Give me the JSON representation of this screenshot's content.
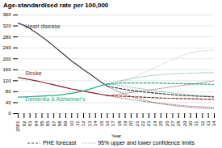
{
  "chart_data": {
    "type": "line",
    "title": "Age-standardised rate per 100,000",
    "xlabel": "Year",
    "x": [
      2001,
      2002,
      2003,
      2004,
      2005,
      2006,
      2007,
      2008,
      2009,
      2010,
      2011,
      2012,
      2013,
      2014,
      2015,
      2016,
      2017,
      2018,
      2019,
      2020,
      2021,
      2022,
      2023,
      2024,
      2025,
      2026,
      2027,
      2028,
      2029,
      2030,
      2031,
      2032,
      2033,
      2034
    ],
    "xlim": [
      2001,
      2034
    ],
    "xticks": [
      2001,
      {
        "value": 2002,
        "label": "02"
      },
      {
        "value": 2003,
        "label": "03"
      },
      {
        "value": 2004,
        "label": "04"
      },
      {
        "value": 2005,
        "label": "05"
      },
      {
        "value": 2006,
        "label": "06"
      },
      {
        "value": 2007,
        "label": "07"
      },
      {
        "value": 2008,
        "label": "08"
      },
      {
        "value": 2009,
        "label": "09"
      },
      {
        "value": 2010,
        "label": "10"
      },
      {
        "value": 2011,
        "label": "11"
      },
      {
        "value": 2012,
        "label": "12"
      },
      {
        "value": 2013,
        "label": "13"
      },
      {
        "value": 2014,
        "label": "14"
      },
      {
        "value": 2015,
        "label": "15"
      },
      {
        "value": 2016,
        "label": "16"
      },
      {
        "value": 2017,
        "label": "17"
      },
      {
        "value": 2018,
        "label": "18"
      },
      {
        "value": 2019,
        "label": "19"
      },
      {
        "value": 2020,
        "label": "20"
      },
      {
        "value": 2021,
        "label": "21"
      },
      {
        "value": 2022,
        "label": "22"
      },
      {
        "value": 2023,
        "label": "23"
      },
      {
        "value": 2024,
        "label": "24"
      },
      {
        "value": 2025,
        "label": "25"
      },
      {
        "value": 2026,
        "label": "26"
      },
      {
        "value": 2027,
        "label": "27"
      },
      {
        "value": 2028,
        "label": "28"
      },
      {
        "value": 2029,
        "label": "29"
      },
      {
        "value": 2030,
        "label": "30"
      },
      {
        "value": 2031,
        "label": "31"
      },
      {
        "value": 2032,
        "label": "32"
      },
      {
        "value": 2033,
        "label": "33"
      },
      {
        "value": 2034,
        "label": "34"
      }
    ],
    "ylim": [
      0,
      360
    ],
    "yticks": [
      0,
      40,
      80,
      120,
      160,
      200,
      240,
      280,
      320,
      360
    ],
    "grid": true,
    "legend": "bottom",
    "series": [
      {
        "color": "#3a3a3a",
        "line_style": "solid",
        "values": [
          330,
          322,
          310,
          296,
          280,
          264,
          246,
          228,
          210,
          192,
          176,
          160,
          146,
          130,
          114,
          100,
          null,
          null,
          null,
          null,
          null,
          null,
          null,
          null,
          null,
          null,
          null,
          null,
          null,
          null,
          null,
          null,
          null,
          null
        ]
      },
      {
        "color": "#8b2020",
        "line_style": "solid",
        "values": [
          132,
          128,
          124,
          120,
          115,
          110,
          105,
          100,
          95,
          90,
          86,
          82,
          78,
          74,
          70,
          66,
          null,
          null,
          null,
          null,
          null,
          null,
          null,
          null,
          null,
          null,
          null,
          null,
          null,
          null,
          null,
          null,
          null,
          null
        ]
      },
      {
        "color": "#20a882",
        "line_style": "solid",
        "values": [
          60,
          61,
          62,
          63,
          64,
          65,
          66,
          68,
          71,
          74,
          78,
          83,
          89,
          96,
          103,
          108,
          null,
          null,
          null,
          null,
          null,
          null,
          null,
          null,
          null,
          null,
          null,
          null,
          null,
          null,
          null,
          null,
          null,
          null
        ]
      },
      {
        "name": "PHE forecast",
        "color": "#3a3a3a",
        "line_style": "dashed",
        "values": [
          null,
          null,
          null,
          null,
          null,
          null,
          null,
          null,
          null,
          null,
          null,
          null,
          null,
          null,
          null,
          100,
          96,
          92,
          88,
          85,
          82,
          79,
          77,
          75,
          73,
          71,
          69,
          67,
          66,
          65,
          64,
          63,
          62,
          61
        ]
      },
      {
        "name": "PHE forecast",
        "color": "#8b2020",
        "line_style": "dashed",
        "values": [
          null,
          null,
          null,
          null,
          null,
          null,
          null,
          null,
          null,
          null,
          null,
          null,
          null,
          null,
          null,
          66,
          65,
          64,
          63,
          62,
          61,
          60,
          59,
          58,
          57,
          56,
          56,
          55,
          55,
          54,
          54,
          53,
          53,
          52
        ]
      },
      {
        "name": "PHE forecast",
        "color": "#20a882",
        "line_style": "dashed",
        "values": [
          null,
          null,
          null,
          null,
          null,
          null,
          null,
          null,
          null,
          null,
          null,
          null,
          null,
          null,
          null,
          108,
          110,
          111,
          112,
          112,
          112,
          112,
          112,
          112,
          111,
          111,
          110,
          110,
          109,
          109,
          108,
          108,
          107,
          107
        ]
      },
      {
        "name": "95% upper and lower confidence limits",
        "color": "#a0b8c0",
        "line_style": "dotted",
        "values": [
          null,
          null,
          null,
          null,
          null,
          null,
          null,
          null,
          null,
          null,
          null,
          null,
          null,
          null,
          null,
          100,
          105,
          112,
          120,
          128,
          138,
          148,
          158,
          168,
          178,
          188,
          198,
          207,
          215,
          222,
          226,
          229,
          231,
          232
        ]
      },
      {
        "name": "95% upper and lower confidence limits",
        "color": "#3a3a3a",
        "line_style": "dotted",
        "values": [
          null,
          null,
          null,
          null,
          null,
          null,
          null,
          null,
          null,
          null,
          null,
          null,
          null,
          null,
          null,
          100,
          89,
          79,
          70,
          63,
          56,
          50,
          45,
          40,
          36,
          33,
          30,
          27,
          25,
          23,
          21,
          20,
          19,
          18
        ]
      },
      {
        "name": "95% upper and lower confidence limits",
        "color": "#8b2020",
        "line_style": "dotted",
        "values": [
          null,
          null,
          null,
          null,
          null,
          null,
          null,
          null,
          null,
          null,
          null,
          null,
          null,
          null,
          null,
          66,
          68,
          71,
          74,
          77,
          80,
          83,
          86,
          89,
          92,
          95,
          98,
          101,
          104,
          107,
          110,
          113,
          116,
          120
        ]
      },
      {
        "name": "95% upper and lower confidence limits",
        "color": "#8b2020",
        "line_style": "dotted",
        "values": [
          null,
          null,
          null,
          null,
          null,
          null,
          null,
          null,
          null,
          null,
          null,
          null,
          null,
          null,
          null,
          66,
          62,
          58,
          55,
          51,
          48,
          45,
          42,
          40,
          37,
          35,
          33,
          31,
          29,
          27,
          26,
          25,
          24,
          23
        ]
      },
      {
        "name": "95% upper and lower confidence limits",
        "color": "#20a882",
        "line_style": "dotted",
        "values": [
          null,
          null,
          null,
          null,
          null,
          null,
          null,
          null,
          null,
          null,
          null,
          null,
          null,
          null,
          null,
          108,
          114,
          119,
          124,
          128,
          132,
          135,
          138,
          140,
          142,
          144,
          145,
          146,
          147,
          148,
          148,
          149,
          149,
          150
        ]
      },
      {
        "name": "95% upper and lower confidence limits",
        "color": "#20a882",
        "line_style": "dotted",
        "values": [
          null,
          null,
          null,
          null,
          null,
          null,
          null,
          null,
          null,
          null,
          null,
          null,
          null,
          null,
          null,
          108,
          106,
          103,
          100,
          97,
          93,
          90,
          87,
          84,
          81,
          78,
          75,
          73,
          71,
          69,
          67,
          65,
          64,
          63
        ]
      }
    ],
    "annotations": [
      {
        "text": "Heart disease",
        "x": 2002.2,
        "y": 310,
        "color": "#3a3a3a"
      },
      {
        "text": "Stroke",
        "x": 2002.2,
        "y": 140,
        "color": "#8b2020"
      },
      {
        "text": "Dementia & Alzheimer's",
        "x": 2002.2,
        "y": 46,
        "color": "#20a882"
      }
    ]
  }
}
